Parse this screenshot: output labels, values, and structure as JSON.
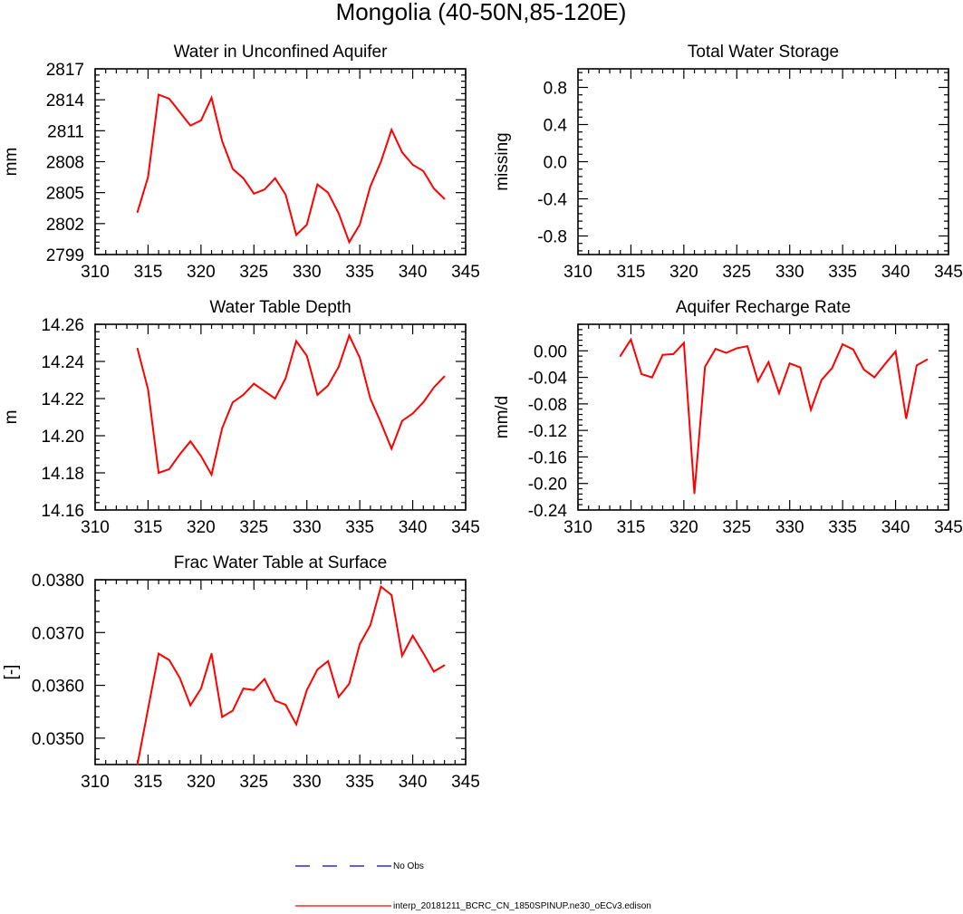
{
  "title": "Mongolia (40-50N,85-120E)",
  "chart_data": [
    {
      "type": "line",
      "title": "Water in Unconfined Aquifer",
      "xlabel": "",
      "ylabel": "mm",
      "xlim": [
        310,
        345
      ],
      "ylim": [
        2799,
        2817
      ],
      "xticks": [
        310,
        315,
        320,
        325,
        330,
        335,
        340,
        345
      ],
      "xtick_labels": [
        "310",
        "315",
        "320",
        "325",
        "330",
        "335",
        "340",
        "345"
      ],
      "yticks": [
        2799,
        2802,
        2805,
        2808,
        2811,
        2814,
        2817
      ],
      "ytick_labels": [
        "2799",
        "2802",
        "2805",
        "2808",
        "2811",
        "2814",
        "2817"
      ],
      "series": [
        {
          "name": "interp_20181211_BCRC_CN_1850SPINUP.ne30_oECv3.edison",
          "color": "#ff0000",
          "x": [
            314,
            315,
            316,
            317,
            318,
            319,
            320,
            321,
            322,
            323,
            324,
            325,
            326,
            327,
            328,
            329,
            330,
            331,
            332,
            333,
            334,
            335,
            336,
            337,
            338,
            339,
            340,
            341,
            342,
            343
          ],
          "values": [
            2803.1,
            2806.5,
            2814.5,
            2814.1,
            2812.8,
            2811.5,
            2812.0,
            2814.2,
            2810.0,
            2807.3,
            2806.4,
            2804.9,
            2805.3,
            2806.4,
            2804.8,
            2800.9,
            2801.9,
            2805.8,
            2805.0,
            2803.0,
            2800.2,
            2801.9,
            2805.6,
            2808.0,
            2811.1,
            2808.9,
            2807.7,
            2807.1,
            2805.4,
            2804.4
          ]
        }
      ]
    },
    {
      "type": "line",
      "title": "Total Water Storage",
      "xlabel": "",
      "ylabel": "missing",
      "xlim": [
        310,
        345
      ],
      "ylim": [
        -1.0,
        1.0
      ],
      "xticks": [
        310,
        315,
        320,
        325,
        330,
        335,
        340,
        345
      ],
      "xtick_labels": [
        "310",
        "315",
        "320",
        "325",
        "330",
        "335",
        "340",
        "345"
      ],
      "yticks": [
        -0.8,
        -0.4,
        0.0,
        0.4,
        0.8
      ],
      "ytick_labels": [
        "-0.8",
        "-0.4",
        "0.0",
        "0.4",
        "0.8"
      ],
      "series": []
    },
    {
      "type": "line",
      "title": "Water Table Depth",
      "xlabel": "",
      "ylabel": "m",
      "xlim": [
        310,
        345
      ],
      "ylim": [
        14.16,
        14.26
      ],
      "xticks": [
        310,
        315,
        320,
        325,
        330,
        335,
        340,
        345
      ],
      "xtick_labels": [
        "310",
        "315",
        "320",
        "325",
        "330",
        "335",
        "340",
        "345"
      ],
      "yticks": [
        14.16,
        14.18,
        14.2,
        14.22,
        14.24,
        14.26
      ],
      "ytick_labels": [
        "14.16",
        "14.18",
        "14.20",
        "14.22",
        "14.24",
        "14.26"
      ],
      "series": [
        {
          "name": "interp_20181211_BCRC_CN_1850SPINUP.ne30_oECv3.edison",
          "color": "#ff0000",
          "x": [
            314,
            315,
            316,
            317,
            318,
            319,
            320,
            321,
            322,
            323,
            324,
            325,
            326,
            327,
            328,
            329,
            330,
            331,
            332,
            333,
            334,
            335,
            336,
            337,
            338,
            339,
            340,
            341,
            342,
            343
          ],
          "values": [
            14.247,
            14.225,
            14.18,
            14.182,
            14.19,
            14.197,
            14.189,
            14.179,
            14.204,
            14.218,
            14.222,
            14.228,
            14.224,
            14.22,
            14.231,
            14.251,
            14.243,
            14.222,
            14.227,
            14.237,
            14.254,
            14.242,
            14.22,
            14.207,
            14.193,
            14.208,
            14.212,
            14.218,
            14.226,
            14.232
          ]
        }
      ]
    },
    {
      "type": "line",
      "title": "Aquifer Recharge Rate",
      "xlabel": "",
      "ylabel": "mm/d",
      "xlim": [
        310,
        345
      ],
      "ylim": [
        -0.24,
        0.04
      ],
      "xticks": [
        310,
        315,
        320,
        325,
        330,
        335,
        340,
        345
      ],
      "xtick_labels": [
        "310",
        "315",
        "320",
        "325",
        "330",
        "335",
        "340",
        "345"
      ],
      "yticks": [
        -0.24,
        -0.2,
        -0.16,
        -0.12,
        -0.08,
        -0.04,
        0.0
      ],
      "ytick_labels": [
        "-0.24",
        "-0.20",
        "-0.16",
        "-0.12",
        "-0.08",
        "-0.04",
        "0.00"
      ],
      "series": [
        {
          "name": "interp_20181211_BCRC_CN_1850SPINUP.ne30_oECv3.edison",
          "color": "#ff0000",
          "x": [
            314,
            315,
            316,
            317,
            318,
            319,
            320,
            321,
            322,
            323,
            324,
            325,
            326,
            327,
            328,
            329,
            330,
            331,
            332,
            333,
            334,
            335,
            336,
            337,
            338,
            339,
            340,
            341,
            342,
            343
          ],
          "values": [
            -0.008,
            0.017,
            -0.035,
            -0.04,
            -0.006,
            -0.005,
            0.012,
            -0.215,
            -0.024,
            0.003,
            -0.003,
            0.004,
            0.007,
            -0.046,
            -0.017,
            -0.064,
            -0.019,
            -0.025,
            -0.089,
            -0.044,
            -0.026,
            0.01,
            0.002,
            -0.028,
            -0.04,
            -0.02,
            -0.001,
            -0.102,
            -0.022,
            -0.013
          ]
        }
      ]
    },
    {
      "type": "line",
      "title": "Frac Water Table at Surface",
      "xlabel": "",
      "ylabel": "[-]",
      "xlim": [
        310,
        345
      ],
      "ylim": [
        0.0345,
        0.038
      ],
      "xticks": [
        310,
        315,
        320,
        325,
        330,
        335,
        340,
        345
      ],
      "xtick_labels": [
        "310",
        "315",
        "320",
        "325",
        "330",
        "335",
        "340",
        "345"
      ],
      "yticks": [
        0.035,
        0.036,
        0.037,
        0.038
      ],
      "ytick_labels": [
        "0.0350",
        "0.0360",
        "0.0370",
        "0.0380"
      ],
      "series": [
        {
          "name": "interp_20181211_BCRC_CN_1850SPINUP.ne30_oECv3.edison",
          "color": "#ff0000",
          "x": [
            314,
            315,
            316,
            317,
            318,
            319,
            320,
            321,
            322,
            323,
            324,
            325,
            326,
            327,
            328,
            329,
            330,
            331,
            332,
            333,
            334,
            335,
            336,
            337,
            338,
            339,
            340,
            341,
            342,
            343
          ],
          "values": [
            0.0345,
            0.03555,
            0.0366,
            0.03648,
            0.03614,
            0.03562,
            0.03594,
            0.0366,
            0.0354,
            0.03552,
            0.03594,
            0.03591,
            0.03612,
            0.03571,
            0.03563,
            0.03526,
            0.03591,
            0.0363,
            0.03646,
            0.03578,
            0.03603,
            0.03678,
            0.03714,
            0.03787,
            0.03771,
            0.03656,
            0.03694,
            0.03661,
            0.03626,
            0.03638
          ]
        }
      ]
    }
  ],
  "legend": [
    {
      "label": "No Obs",
      "color": "#0000cc",
      "style": "dashed"
    },
    {
      "label": "interp_20181211_BCRC_CN_1850SPINUP.ne30_oECv3.edison",
      "color": "#ff0000",
      "style": "solid"
    }
  ]
}
